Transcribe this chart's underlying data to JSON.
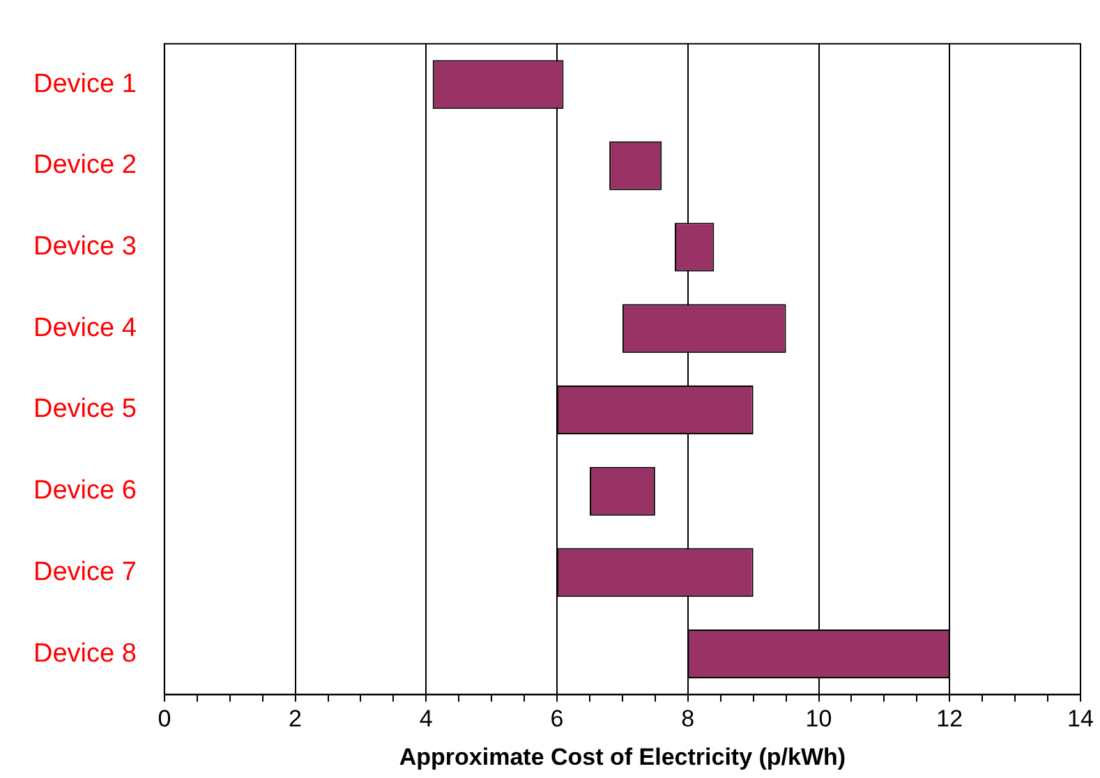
{
  "chart_data": {
    "type": "bar",
    "orientation": "horizontal",
    "xlabel": "Approximate Cost of Electricity (p/kWh)",
    "categories": [
      "Device 1",
      "Device 2",
      "Device 3",
      "Device 4",
      "Device 5",
      "Device 6",
      "Device 7",
      "Device 8"
    ],
    "base": [
      4.1,
      6.8,
      7.8,
      7,
      6,
      6.5,
      6,
      8
    ],
    "values": [
      2,
      0.8,
      0.6,
      2.5,
      3,
      1,
      3,
      4
    ],
    "color": "#993366",
    "xlim": [
      0,
      14
    ],
    "xticks": [
      0,
      {
        "value": 0.5,
        "label": null
      },
      {
        "value": 1,
        "label": null
      },
      {
        "value": 1.5,
        "label": null
      },
      2,
      {
        "value": 2.5,
        "label": null
      },
      {
        "value": 3,
        "label": null
      },
      {
        "value": 3.5,
        "label": null
      },
      4,
      {
        "value": 4.5,
        "label": null
      },
      {
        "value": 5,
        "label": null
      },
      {
        "value": 5.5,
        "label": null
      },
      6,
      {
        "value": 6.5,
        "label": null
      },
      {
        "value": 7,
        "label": null
      },
      {
        "value": 7.5,
        "label": null
      },
      8,
      {
        "value": 8.5,
        "label": null
      },
      {
        "value": 9,
        "label": null
      },
      {
        "value": 9.5,
        "label": null
      },
      10,
      {
        "value": 10.5,
        "label": null
      },
      {
        "value": 11,
        "label": null
      },
      {
        "value": 11.5,
        "label": null
      },
      12,
      {
        "value": 12.5,
        "label": null
      },
      {
        "value": 13,
        "label": null
      },
      {
        "value": 13.5,
        "label": null
      },
      14
    ],
    "grid": "x",
    "legend": false
  }
}
